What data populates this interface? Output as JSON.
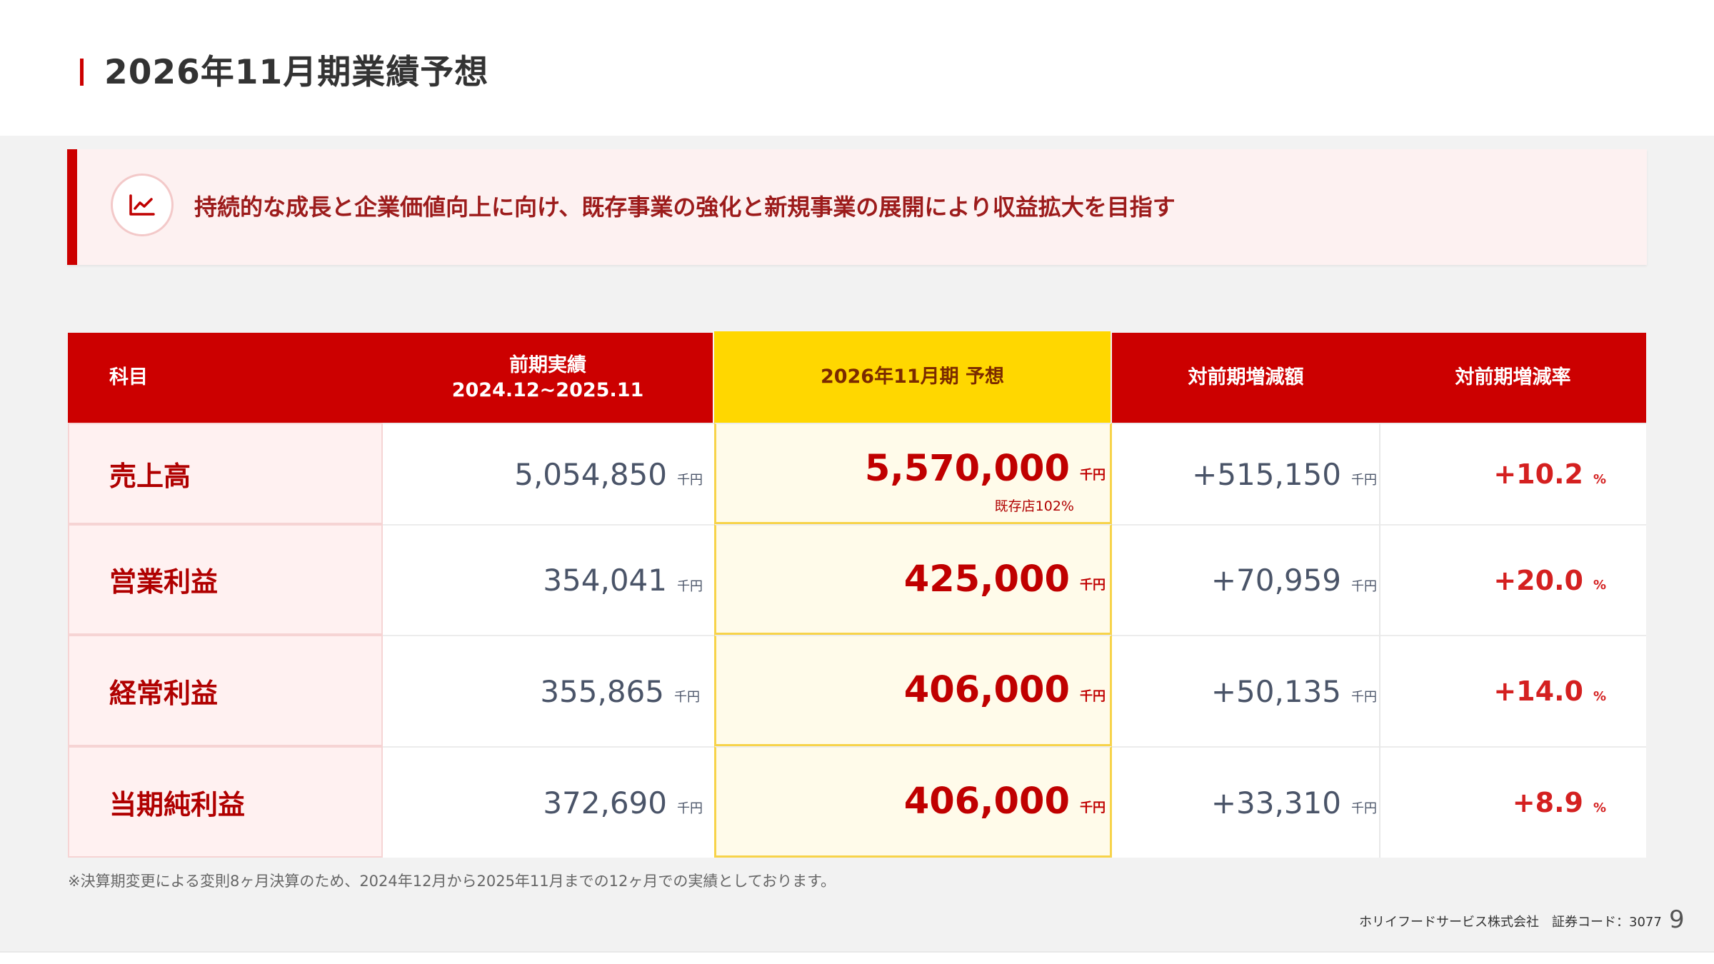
{
  "header": {
    "title": "2026年11月期業績予想"
  },
  "banner": {
    "icon": "line-chart-icon",
    "text": "持続的な成長と企業価値向上に向け、既存事業の強化と新規事業の展開により収益拡大を目指す"
  },
  "table": {
    "headers": {
      "item": "科目",
      "prev_line1": "前期実績",
      "prev_line2": "2024.12~2025.11",
      "forecast": "2026年11月期 予想",
      "diff": "対前期増減額",
      "rate": "対前期増減率"
    },
    "rows": [
      {
        "label": "売上高",
        "prev": "5,054,850",
        "prev_unit": "千円",
        "forecast": "5,570,000",
        "forecast_unit": "千円",
        "forecast_note": "既存店102%",
        "diff": "+515,150",
        "diff_unit": "千円",
        "rate": "+10.2",
        "rate_unit": "%"
      },
      {
        "label": "営業利益",
        "prev": "354,041",
        "prev_unit": "千円",
        "forecast": "425,000",
        "forecast_unit": "千円",
        "diff": "+70,959",
        "diff_unit": "千円",
        "rate": "+20.0",
        "rate_unit": "%"
      },
      {
        "label": "経常利益",
        "prev": "355,865",
        "prev_unit": "千円",
        "forecast": "406,000",
        "forecast_unit": "千円",
        "diff": "+50,135",
        "diff_unit": "千円",
        "rate": "+14.0",
        "rate_unit": "%"
      },
      {
        "label": "当期純利益",
        "prev": "372,690",
        "prev_unit": "千円",
        "forecast": "406,000",
        "forecast_unit": "千円",
        "diff": "+33,310",
        "diff_unit": "千円",
        "rate": "+8.9",
        "rate_unit": "%"
      }
    ]
  },
  "footnote": "※決算期変更による変則8ヶ月決算のため、2024年12月から2025年11月までの12ヶ月での実績としております。",
  "footer": {
    "company": "ホリイフードサービス株式会社　証券コード：3077",
    "page": "9"
  },
  "colors": {
    "accent": "#cc0000",
    "forecast_header": "#ffd700",
    "forecast_bg": "#fffbea",
    "banner_bg": "#fdf1f1"
  }
}
